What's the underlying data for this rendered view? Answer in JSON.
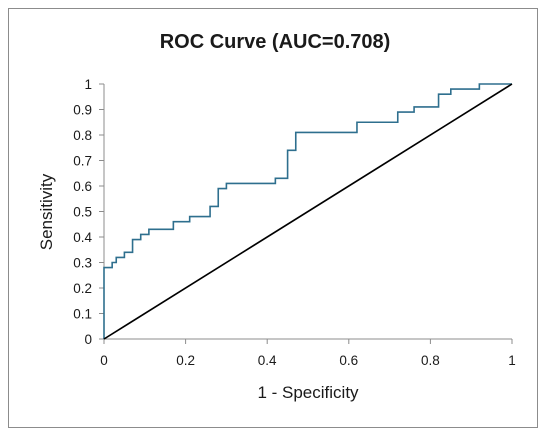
{
  "chart_data": {
    "type": "line",
    "title": "ROC Curve (AUC=0.708)",
    "xlabel": "1 - Specificity",
    "ylabel": "Sensitivity",
    "xlim": [
      0,
      1
    ],
    "ylim": [
      0,
      1
    ],
    "x_ticks": [
      "0",
      "0.2",
      "0.4",
      "0.6",
      "0.8",
      "1"
    ],
    "y_ticks": [
      "0",
      "0.1",
      "0.2",
      "0.3",
      "0.4",
      "0.5",
      "0.6",
      "0.7",
      "0.8",
      "0.9",
      "1"
    ],
    "x_tick_values": [
      0,
      0.2,
      0.4,
      0.6,
      0.8,
      1
    ],
    "y_tick_values": [
      0,
      0.1,
      0.2,
      0.3,
      0.4,
      0.5,
      0.6,
      0.7,
      0.8,
      0.9,
      1
    ],
    "grid": false,
    "legend": "none",
    "series": [
      {
        "color": "#2e6f8e",
        "points": [
          [
            0,
            0
          ],
          [
            0,
            0.28
          ],
          [
            0.02,
            0.28
          ],
          [
            0.02,
            0.3
          ],
          [
            0.03,
            0.3
          ],
          [
            0.03,
            0.32
          ],
          [
            0.05,
            0.32
          ],
          [
            0.05,
            0.34
          ],
          [
            0.07,
            0.34
          ],
          [
            0.07,
            0.39
          ],
          [
            0.09,
            0.39
          ],
          [
            0.09,
            0.41
          ],
          [
            0.11,
            0.41
          ],
          [
            0.11,
            0.43
          ],
          [
            0.17,
            0.43
          ],
          [
            0.17,
            0.46
          ],
          [
            0.21,
            0.46
          ],
          [
            0.21,
            0.48
          ],
          [
            0.26,
            0.48
          ],
          [
            0.26,
            0.52
          ],
          [
            0.28,
            0.52
          ],
          [
            0.28,
            0.59
          ],
          [
            0.3,
            0.59
          ],
          [
            0.3,
            0.61
          ],
          [
            0.42,
            0.61
          ],
          [
            0.42,
            0.63
          ],
          [
            0.45,
            0.63
          ],
          [
            0.45,
            0.74
          ],
          [
            0.47,
            0.74
          ],
          [
            0.47,
            0.81
          ],
          [
            0.62,
            0.81
          ],
          [
            0.62,
            0.85
          ],
          [
            0.72,
            0.85
          ],
          [
            0.72,
            0.89
          ],
          [
            0.76,
            0.89
          ],
          [
            0.76,
            0.91
          ],
          [
            0.82,
            0.91
          ],
          [
            0.82,
            0.96
          ],
          [
            0.85,
            0.96
          ],
          [
            0.85,
            0.98
          ],
          [
            0.92,
            0.98
          ],
          [
            0.92,
            1.0
          ],
          [
            1.0,
            1.0
          ]
        ]
      },
      {
        "color": "#000000",
        "points": [
          [
            0,
            0
          ],
          [
            1,
            1
          ]
        ]
      }
    ]
  }
}
